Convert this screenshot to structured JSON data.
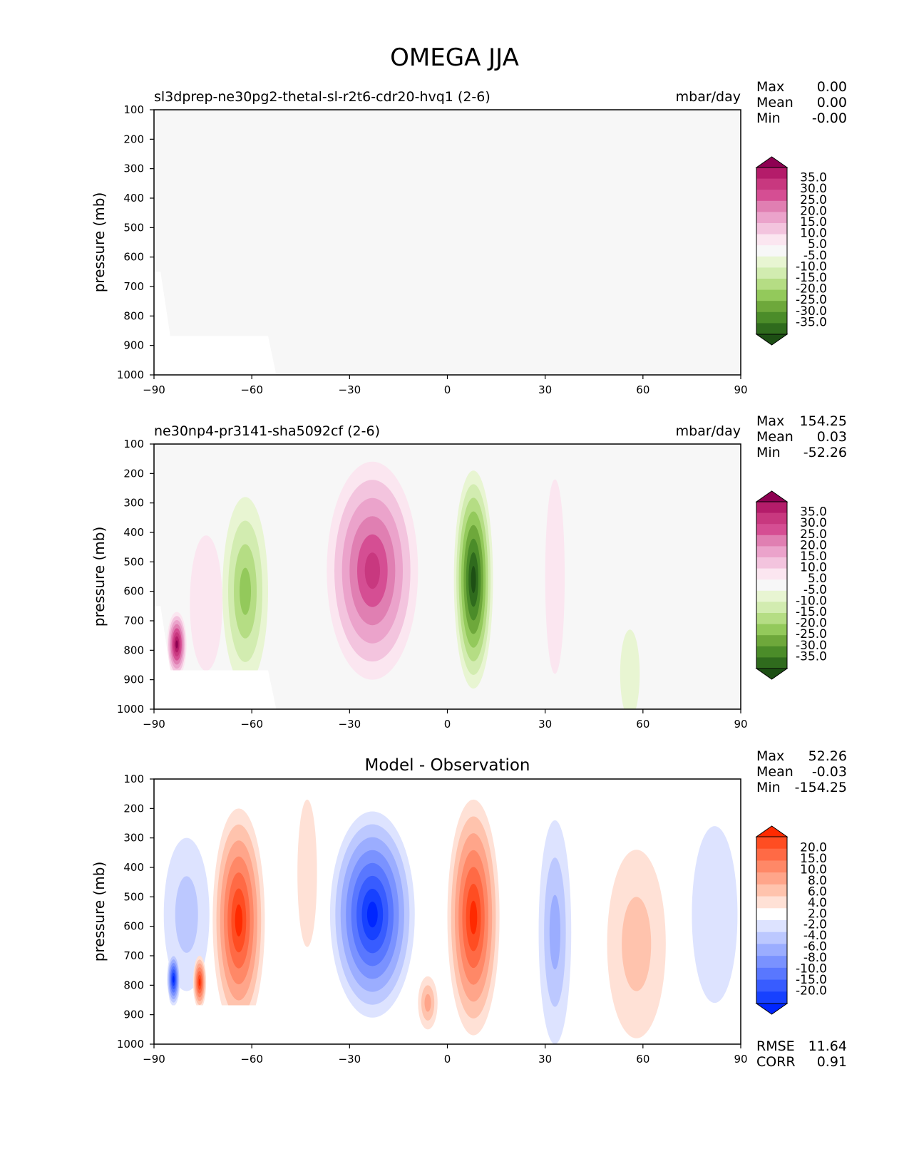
{
  "figure_title": "OMEGA JJA",
  "chart_data": [
    {
      "type": "heatmap",
      "panel": "test",
      "title": "",
      "left_title": "sl3dprep-ne30pg2-thetal-sl-r2t6-cdr20-hvq1 (2-6)",
      "units": "mbar/day",
      "xlabel": "",
      "ylabel": "pressure (mb)",
      "xlim": [
        -90,
        90
      ],
      "ylim": [
        1000,
        100
      ],
      "xticks": [
        "−90",
        "−60",
        "−30",
        "0",
        "30",
        "60",
        "90"
      ],
      "yticks": [
        "100",
        "200",
        "300",
        "400",
        "500",
        "600",
        "700",
        "800",
        "900",
        "1000"
      ],
      "stats": {
        "Max": "0.00",
        "Mean": "0.00",
        "Min": "-0.00"
      },
      "colorbar_labels": [
        "35.0",
        "30.0",
        "25.0",
        "20.0",
        "15.0",
        "10.0",
        "5.0",
        "-5.0",
        "-10.0",
        "-15.0",
        "-20.0",
        "-25.0",
        "-30.0",
        "-35.0"
      ],
      "colorbar_colors": [
        "#8e0152",
        "#b41c6a",
        "#c8387f",
        "#d54e93",
        "#e07fb2",
        "#eba3cb",
        "#f3c4de",
        "#fbe6f0",
        "#f7f7f7",
        "#e8f5d2",
        "#d2ecb0",
        "#b5dd84",
        "#93c95b",
        "#6ea83b",
        "#4b8c29",
        "#2f6b1d",
        "#1d4f14"
      ],
      "features": [
        {
          "kind": "uniform",
          "value": 0
        }
      ]
    },
    {
      "type": "heatmap",
      "panel": "reference",
      "title": "",
      "left_title": "ne30np4-pr3141-sha5092cf (2-6)",
      "units": "mbar/day",
      "xlabel": "",
      "ylabel": "pressure (mb)",
      "xlim": [
        -90,
        90
      ],
      "ylim": [
        1000,
        100
      ],
      "xticks": [
        "−90",
        "−60",
        "−30",
        "0",
        "30",
        "60",
        "90"
      ],
      "yticks": [
        "100",
        "200",
        "300",
        "400",
        "500",
        "600",
        "700",
        "800",
        "900",
        "1000"
      ],
      "stats": {
        "Max": "154.25",
        "Mean": "0.03",
        "Min": "-52.26"
      },
      "colorbar_labels": [
        "35.0",
        "30.0",
        "25.0",
        "20.0",
        "15.0",
        "10.0",
        "5.0",
        "-5.0",
        "-10.0",
        "-15.0",
        "-20.0",
        "-25.0",
        "-30.0",
        "-35.0"
      ],
      "colorbar_colors": [
        "#8e0152",
        "#b41c6a",
        "#c8387f",
        "#d54e93",
        "#e07fb2",
        "#eba3cb",
        "#f3c4de",
        "#fbe6f0",
        "#f7f7f7",
        "#e8f5d2",
        "#d2ecb0",
        "#b5dd84",
        "#93c95b",
        "#6ea83b",
        "#4b8c29",
        "#2f6b1d",
        "#1d4f14"
      ],
      "features": [
        {
          "kind": "cell",
          "lat": -23,
          "p": 530,
          "lat_halfwidth": 14,
          "p_halfwidth": 370,
          "peak": 30
        },
        {
          "kind": "cell",
          "lat": 8,
          "p": 560,
          "lat_halfwidth": 6,
          "p_halfwidth": 370,
          "peak": -40
        },
        {
          "kind": "cell",
          "lat": -62,
          "p": 600,
          "lat_halfwidth": 7,
          "p_halfwidth": 320,
          "peak": -22
        },
        {
          "kind": "cell",
          "lat": -83,
          "p": 780,
          "lat_halfwidth": 3,
          "p_halfwidth": 110,
          "peak": 45
        },
        {
          "kind": "cell",
          "lat": -74,
          "p": 640,
          "lat_halfwidth": 5,
          "p_halfwidth": 230,
          "peak": 8
        },
        {
          "kind": "cell",
          "lat": 33,
          "p": 550,
          "lat_halfwidth": 3,
          "p_halfwidth": 330,
          "peak": 6
        },
        {
          "kind": "cell",
          "lat": 56,
          "p": 880,
          "lat_halfwidth": 3,
          "p_halfwidth": 150,
          "peak": -7
        }
      ]
    },
    {
      "type": "heatmap",
      "panel": "difference",
      "title": "Model - Observation",
      "left_title": "",
      "units": "",
      "xlabel": "",
      "ylabel": "pressure (mb)",
      "xlim": [
        -90,
        90
      ],
      "ylim": [
        1000,
        100
      ],
      "xticks": [
        "−90",
        "−60",
        "−30",
        "0",
        "30",
        "60",
        "90"
      ],
      "yticks": [
        "100",
        "200",
        "300",
        "400",
        "500",
        "600",
        "700",
        "800",
        "900",
        "1000"
      ],
      "stats": {
        "Max": "52.26",
        "Mean": "-0.03",
        "Min": "-154.25"
      },
      "extra_stats": {
        "RMSE": "11.64",
        "CORR": "0.91"
      },
      "colorbar_labels": [
        "20.0",
        "15.0",
        "10.0",
        "8.0",
        "6.0",
        "4.0",
        "2.0",
        "-2.0",
        "-4.0",
        "-6.0",
        "-8.0",
        "-10.0",
        "-15.0",
        "-20.0"
      ],
      "colorbar_colors": [
        "#ff2a00",
        "#ff4d22",
        "#ff6a45",
        "#ff8867",
        "#ffa58a",
        "#ffc3ad",
        "#ffe1d6",
        "#ffffff",
        "#dde3ff",
        "#bcc8ff",
        "#9badff",
        "#7a92ff",
        "#5977ff",
        "#385cff",
        "#1741ff",
        "#0026ff"
      ],
      "features": [
        {
          "kind": "cell",
          "lat": -23,
          "p": 560,
          "lat_halfwidth": 13,
          "p_halfwidth": 350,
          "peak": -30
        },
        {
          "kind": "cell",
          "lat": 8,
          "p": 570,
          "lat_halfwidth": 8,
          "p_halfwidth": 400,
          "peak": 40
        },
        {
          "kind": "cell",
          "lat": -64,
          "p": 580,
          "lat_halfwidth": 8,
          "p_halfwidth": 380,
          "peak": 22
        },
        {
          "kind": "cell",
          "lat": -80,
          "p": 560,
          "lat_halfwidth": 7,
          "p_halfwidth": 260,
          "peak": -8
        },
        {
          "kind": "cell",
          "lat": -84,
          "p": 780,
          "lat_halfwidth": 2,
          "p_halfwidth": 90,
          "peak": -28
        },
        {
          "kind": "cell",
          "lat": -76,
          "p": 790,
          "lat_halfwidth": 2,
          "p_halfwidth": 90,
          "peak": 25
        },
        {
          "kind": "cell",
          "lat": 33,
          "p": 620,
          "lat_halfwidth": 5,
          "p_halfwidth": 380,
          "peak": -9
        },
        {
          "kind": "cell",
          "lat": 58,
          "p": 660,
          "lat_halfwidth": 9,
          "p_halfwidth": 320,
          "peak": 7
        },
        {
          "kind": "cell",
          "lat": 82,
          "p": 560,
          "lat_halfwidth": 7,
          "p_halfwidth": 300,
          "peak": -4
        },
        {
          "kind": "cell",
          "lat": -6,
          "p": 860,
          "lat_halfwidth": 3,
          "p_halfwidth": 90,
          "peak": 10
        },
        {
          "kind": "cell",
          "lat": -43,
          "p": 420,
          "lat_halfwidth": 3,
          "p_halfwidth": 250,
          "peak": 3
        }
      ]
    }
  ]
}
